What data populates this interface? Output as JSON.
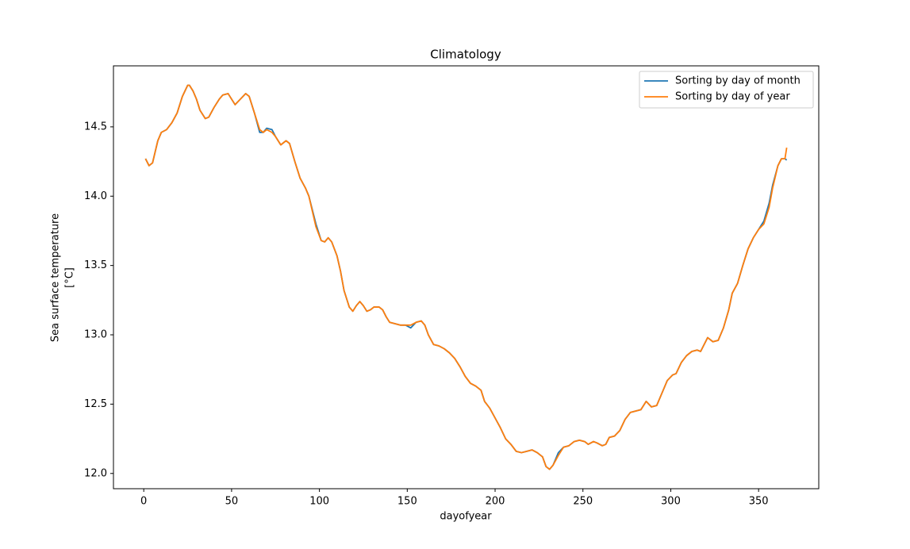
{
  "chart_data": {
    "type": "line",
    "title": "Climatology",
    "xlabel": "dayofyear",
    "ylabel": [
      "Sea surface temperature",
      "[°C]"
    ],
    "x": [
      1,
      3,
      5,
      8,
      10,
      13,
      16,
      19,
      22,
      25,
      26,
      28,
      30,
      32,
      35,
      37,
      40,
      43,
      45,
      48,
      50,
      52,
      55,
      58,
      60,
      63,
      66,
      68,
      70,
      73,
      75,
      78,
      81,
      83,
      86,
      89,
      92,
      94,
      96,
      98,
      101,
      103,
      105,
      107,
      110,
      112,
      114,
      117,
      119,
      121,
      123,
      125,
      127,
      129,
      131,
      134,
      136,
      138,
      140,
      143,
      146,
      149,
      152,
      155,
      158,
      160,
      162,
      165,
      168,
      171,
      174,
      177,
      180,
      183,
      186,
      189,
      192,
      194,
      197,
      200,
      203,
      206,
      209,
      212,
      215,
      218,
      221,
      224,
      227,
      229,
      231,
      233,
      236,
      239,
      242,
      245,
      248,
      251,
      253,
      256,
      258,
      261,
      263,
      265,
      268,
      271,
      274,
      277,
      280,
      283,
      286,
      289,
      292,
      295,
      298,
      301,
      303,
      306,
      309,
      312,
      315,
      317,
      319,
      321,
      324,
      327,
      330,
      333,
      335,
      338,
      341,
      344,
      347,
      350,
      353,
      356,
      358,
      361,
      363,
      365,
      366
    ],
    "series": [
      {
        "name": "Sorting by day of month",
        "color": "#1f77b4",
        "values": [
          14.27,
          14.22,
          14.24,
          14.4,
          14.46,
          14.48,
          14.53,
          14.6,
          14.72,
          14.8,
          14.8,
          14.76,
          14.7,
          14.62,
          14.56,
          14.57,
          14.64,
          14.7,
          14.73,
          14.74,
          14.7,
          14.66,
          14.7,
          14.74,
          14.72,
          14.6,
          14.46,
          14.46,
          14.49,
          14.48,
          14.43,
          14.37,
          14.4,
          14.38,
          14.25,
          14.13,
          14.06,
          14.0,
          13.9,
          13.8,
          13.68,
          13.67,
          13.7,
          13.67,
          13.57,
          13.46,
          13.32,
          13.2,
          13.17,
          13.21,
          13.24,
          13.21,
          13.17,
          13.18,
          13.2,
          13.2,
          13.18,
          13.13,
          13.09,
          13.08,
          13.07,
          13.07,
          13.05,
          13.09,
          13.1,
          13.07,
          13.0,
          12.93,
          12.92,
          12.9,
          12.87,
          12.83,
          12.77,
          12.7,
          12.65,
          12.63,
          12.6,
          12.52,
          12.47,
          12.4,
          12.33,
          12.25,
          12.21,
          12.16,
          12.15,
          12.16,
          12.17,
          12.15,
          12.12,
          12.05,
          12.03,
          12.06,
          12.15,
          12.19,
          12.2,
          12.23,
          12.24,
          12.23,
          12.21,
          12.23,
          12.22,
          12.2,
          12.21,
          12.26,
          12.27,
          12.31,
          12.39,
          12.44,
          12.45,
          12.46,
          12.52,
          12.48,
          12.49,
          12.58,
          12.67,
          12.71,
          12.72,
          12.8,
          12.85,
          12.88,
          12.89,
          12.88,
          12.93,
          12.98,
          12.95,
          12.96,
          13.05,
          13.18,
          13.3,
          13.37,
          13.5,
          13.62,
          13.7,
          13.76,
          13.82,
          13.95,
          14.08,
          14.22,
          14.27,
          14.27,
          14.26
        ]
      },
      {
        "name": "Sorting by day of year",
        "color": "#ff7f0e",
        "values": [
          14.27,
          14.22,
          14.24,
          14.4,
          14.46,
          14.48,
          14.53,
          14.6,
          14.72,
          14.8,
          14.8,
          14.76,
          14.7,
          14.62,
          14.56,
          14.57,
          14.64,
          14.7,
          14.73,
          14.74,
          14.7,
          14.66,
          14.7,
          14.74,
          14.72,
          14.6,
          14.48,
          14.46,
          14.48,
          14.46,
          14.43,
          14.37,
          14.4,
          14.38,
          14.25,
          14.13,
          14.06,
          14.0,
          13.89,
          13.78,
          13.68,
          13.67,
          13.7,
          13.67,
          13.57,
          13.46,
          13.32,
          13.2,
          13.17,
          13.21,
          13.24,
          13.21,
          13.17,
          13.18,
          13.2,
          13.2,
          13.18,
          13.13,
          13.09,
          13.08,
          13.07,
          13.07,
          13.07,
          13.09,
          13.1,
          13.07,
          13.0,
          12.93,
          12.92,
          12.9,
          12.87,
          12.83,
          12.77,
          12.7,
          12.65,
          12.63,
          12.6,
          12.52,
          12.47,
          12.4,
          12.33,
          12.25,
          12.21,
          12.16,
          12.15,
          12.16,
          12.17,
          12.15,
          12.12,
          12.05,
          12.03,
          12.06,
          12.13,
          12.19,
          12.2,
          12.23,
          12.24,
          12.23,
          12.21,
          12.23,
          12.22,
          12.2,
          12.21,
          12.26,
          12.27,
          12.31,
          12.39,
          12.44,
          12.45,
          12.46,
          12.52,
          12.48,
          12.49,
          12.58,
          12.67,
          12.71,
          12.72,
          12.8,
          12.85,
          12.88,
          12.89,
          12.88,
          12.93,
          12.98,
          12.95,
          12.96,
          13.05,
          13.18,
          13.3,
          13.37,
          13.5,
          13.62,
          13.7,
          13.76,
          13.8,
          13.92,
          14.06,
          14.22,
          14.27,
          14.27,
          14.35
        ]
      }
    ],
    "xlim": [
      -17.25,
      384.25
    ],
    "xticks": [
      0,
      50,
      100,
      150,
      200,
      250,
      300,
      350
    ],
    "ylim": [
      11.89,
      14.94
    ],
    "yticks": [
      {
        "value": 12,
        "label": "12.0"
      },
      12.5,
      {
        "value": 13,
        "label": "13.0"
      },
      13.5,
      {
        "value": 14,
        "label": "14.0"
      },
      14.5
    ],
    "grid": false,
    "legend": "upper-right"
  }
}
